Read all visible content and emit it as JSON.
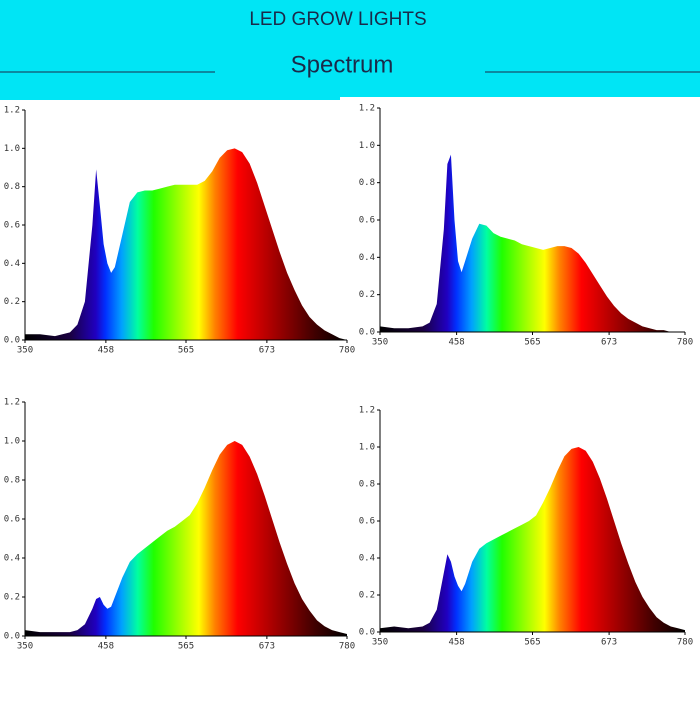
{
  "header": {
    "title": "LED GROW LIGHTS",
    "subtitle": "Spectrum"
  },
  "chart_data": [
    {
      "type": "area",
      "xlim": [
        350,
        780
      ],
      "ylim": [
        0,
        1.2
      ],
      "xticks": [
        350,
        458,
        565,
        673,
        780
      ],
      "yticks": [
        {
          "value": 0,
          "label": "0.0"
        },
        0.2,
        0.4,
        0.6,
        0.8,
        {
          "value": 1,
          "label": "1.0"
        },
        1.2
      ],
      "x": [
        350,
        370,
        390,
        410,
        420,
        430,
        440,
        445,
        450,
        455,
        460,
        465,
        470,
        480,
        490,
        500,
        510,
        520,
        530,
        540,
        550,
        560,
        570,
        580,
        590,
        600,
        610,
        620,
        630,
        640,
        650,
        660,
        670,
        680,
        690,
        700,
        710,
        720,
        730,
        740,
        750,
        760,
        770,
        780
      ],
      "values": [
        0.03,
        0.03,
        0.02,
        0.04,
        0.08,
        0.2,
        0.6,
        0.89,
        0.7,
        0.5,
        0.4,
        0.35,
        0.38,
        0.55,
        0.72,
        0.77,
        0.78,
        0.78,
        0.79,
        0.8,
        0.81,
        0.81,
        0.81,
        0.81,
        0.83,
        0.88,
        0.95,
        0.99,
        1.0,
        0.98,
        0.92,
        0.82,
        0.7,
        0.58,
        0.46,
        0.35,
        0.26,
        0.18,
        0.12,
        0.08,
        0.05,
        0.03,
        0.01,
        0.0
      ]
    },
    {
      "type": "area",
      "xlim": [
        350,
        780
      ],
      "ylim": [
        0,
        1.2
      ],
      "xticks": [
        350,
        458,
        565,
        673,
        780
      ],
      "yticks": [
        {
          "value": 0,
          "label": "0.0"
        },
        0.2,
        0.4,
        0.6,
        0.8,
        {
          "value": 1,
          "label": "1.0"
        },
        1.2
      ],
      "x": [
        350,
        370,
        390,
        410,
        420,
        430,
        440,
        445,
        450,
        455,
        460,
        465,
        470,
        480,
        490,
        500,
        510,
        520,
        530,
        540,
        550,
        560,
        570,
        580,
        590,
        600,
        610,
        620,
        630,
        640,
        650,
        660,
        670,
        680,
        690,
        700,
        710,
        720,
        730,
        740,
        750,
        760,
        770,
        780
      ],
      "values": [
        0.03,
        0.02,
        0.02,
        0.03,
        0.05,
        0.15,
        0.55,
        0.9,
        0.95,
        0.6,
        0.38,
        0.32,
        0.38,
        0.5,
        0.58,
        0.57,
        0.53,
        0.51,
        0.5,
        0.49,
        0.47,
        0.46,
        0.45,
        0.44,
        0.45,
        0.46,
        0.46,
        0.45,
        0.42,
        0.37,
        0.31,
        0.25,
        0.19,
        0.14,
        0.1,
        0.07,
        0.05,
        0.03,
        0.02,
        0.01,
        0.01,
        0.0,
        0.0,
        0.0
      ]
    },
    {
      "type": "area",
      "xlim": [
        350,
        780
      ],
      "ylim": [
        0,
        1.2
      ],
      "xticks": [
        350,
        458,
        565,
        673,
        780
      ],
      "yticks": [
        {
          "value": 0,
          "label": "0.0"
        },
        0.2,
        0.4,
        0.6,
        0.8,
        {
          "value": 1,
          "label": "1.0"
        },
        1.2
      ],
      "x": [
        350,
        370,
        390,
        410,
        420,
        430,
        440,
        445,
        450,
        455,
        460,
        465,
        470,
        480,
        490,
        500,
        510,
        520,
        530,
        540,
        550,
        560,
        570,
        580,
        590,
        600,
        610,
        620,
        630,
        640,
        650,
        660,
        670,
        680,
        690,
        700,
        710,
        720,
        730,
        740,
        750,
        760,
        770,
        780
      ],
      "values": [
        0.03,
        0.02,
        0.02,
        0.02,
        0.03,
        0.06,
        0.14,
        0.19,
        0.2,
        0.16,
        0.14,
        0.15,
        0.2,
        0.3,
        0.38,
        0.42,
        0.45,
        0.48,
        0.51,
        0.54,
        0.56,
        0.59,
        0.62,
        0.68,
        0.76,
        0.85,
        0.93,
        0.98,
        1.0,
        0.98,
        0.92,
        0.83,
        0.72,
        0.6,
        0.48,
        0.37,
        0.27,
        0.19,
        0.13,
        0.08,
        0.05,
        0.03,
        0.02,
        0.01
      ]
    },
    {
      "type": "area",
      "xlim": [
        350,
        780
      ],
      "ylim": [
        0,
        1.2
      ],
      "xticks": [
        350,
        458,
        565,
        673,
        780
      ],
      "yticks": [
        {
          "value": 0,
          "label": "0.0"
        },
        0.2,
        0.4,
        0.6,
        0.8,
        {
          "value": 1,
          "label": "1.0"
        },
        1.2
      ],
      "x": [
        350,
        370,
        390,
        410,
        420,
        430,
        440,
        445,
        450,
        455,
        460,
        465,
        470,
        480,
        490,
        500,
        510,
        520,
        530,
        540,
        550,
        560,
        570,
        580,
        590,
        600,
        610,
        620,
        630,
        640,
        650,
        660,
        670,
        680,
        690,
        700,
        710,
        720,
        730,
        740,
        750,
        760,
        770,
        780
      ],
      "values": [
        0.02,
        0.03,
        0.02,
        0.03,
        0.05,
        0.12,
        0.32,
        0.42,
        0.38,
        0.3,
        0.25,
        0.22,
        0.26,
        0.38,
        0.45,
        0.48,
        0.5,
        0.52,
        0.54,
        0.56,
        0.58,
        0.6,
        0.63,
        0.7,
        0.78,
        0.87,
        0.95,
        0.99,
        1.0,
        0.98,
        0.92,
        0.83,
        0.72,
        0.6,
        0.48,
        0.37,
        0.27,
        0.19,
        0.13,
        0.08,
        0.05,
        0.03,
        0.02,
        0.01
      ]
    }
  ]
}
